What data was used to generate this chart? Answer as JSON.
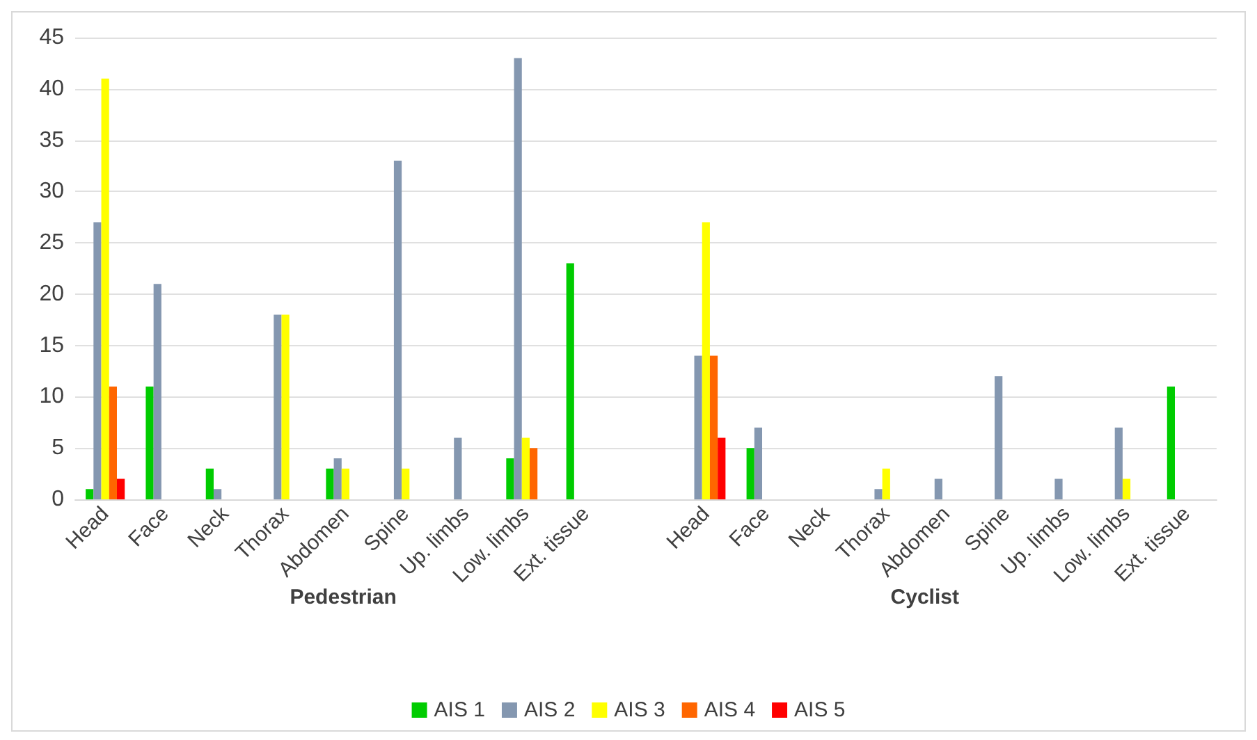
{
  "chart_data": {
    "type": "bar",
    "categories": [
      "Head",
      "Face",
      "Neck",
      "Thorax",
      "Abdomen",
      "Spine",
      "Up. limbs",
      "Low. limbs",
      "Ext. tissue",
      null,
      "Head",
      "Face",
      "Neck",
      "Thorax",
      "Abdomen",
      "Spine",
      "Up. limbs",
      "Low. limbs",
      "Ext. tissue"
    ],
    "series": [
      {
        "name": "AIS 1",
        "color": "#00cc00",
        "values": [
          1,
          11,
          3,
          null,
          3,
          null,
          null,
          4,
          23,
          null,
          null,
          5,
          null,
          null,
          null,
          null,
          null,
          null,
          11
        ]
      },
      {
        "name": "AIS 2",
        "color": "#8497b0",
        "values": [
          27,
          21,
          1,
          18,
          4,
          33,
          6,
          43,
          null,
          null,
          14,
          7,
          null,
          1,
          2,
          12,
          2,
          7,
          null
        ]
      },
      {
        "name": "AIS 3",
        "color": "#ffff00",
        "values": [
          41,
          null,
          null,
          18,
          3,
          3,
          null,
          6,
          null,
          null,
          27,
          null,
          null,
          3,
          null,
          null,
          null,
          2,
          null
        ]
      },
      {
        "name": "AIS 4",
        "color": "#ff6600",
        "values": [
          11,
          null,
          null,
          null,
          null,
          null,
          null,
          5,
          null,
          null,
          14,
          null,
          null,
          null,
          null,
          null,
          null,
          null,
          null
        ]
      },
      {
        "name": "AIS 5",
        "color": "#ff0000",
        "values": [
          2,
          null,
          null,
          null,
          null,
          null,
          null,
          null,
          null,
          null,
          6,
          null,
          null,
          null,
          null,
          null,
          null,
          null,
          null
        ]
      }
    ],
    "ylim": [
      0,
      45
    ],
    "yticks": [
      0,
      5,
      10,
      15,
      20,
      25,
      30,
      35,
      40,
      45
    ],
    "grid": "y",
    "legend": "bottom",
    "annotations": [
      "Pedestrian",
      "Cyclist"
    ]
  }
}
